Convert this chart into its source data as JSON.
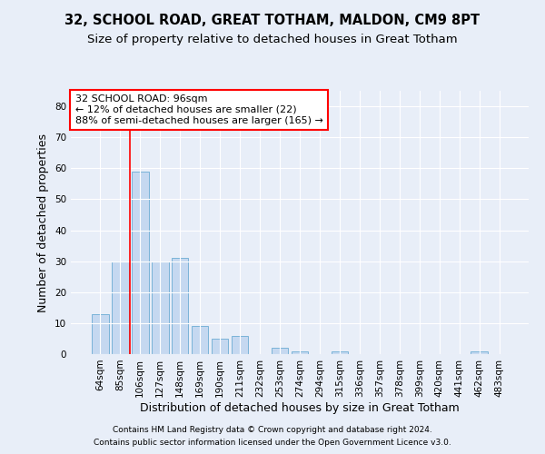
{
  "title1": "32, SCHOOL ROAD, GREAT TOTHAM, MALDON, CM9 8PT",
  "title2": "Size of property relative to detached houses in Great Totham",
  "xlabel": "Distribution of detached houses by size in Great Totham",
  "ylabel": "Number of detached properties",
  "footnote1": "Contains HM Land Registry data © Crown copyright and database right 2024.",
  "footnote2": "Contains public sector information licensed under the Open Government Licence v3.0.",
  "categories": [
    "64sqm",
    "85sqm",
    "106sqm",
    "127sqm",
    "148sqm",
    "169sqm",
    "190sqm",
    "211sqm",
    "232sqm",
    "253sqm",
    "274sqm",
    "294sqm",
    "315sqm",
    "336sqm",
    "357sqm",
    "378sqm",
    "399sqm",
    "420sqm",
    "441sqm",
    "462sqm",
    "483sqm"
  ],
  "values": [
    13,
    30,
    59,
    30,
    31,
    9,
    5,
    6,
    0,
    2,
    1,
    0,
    1,
    0,
    0,
    0,
    0,
    0,
    0,
    1,
    0
  ],
  "bar_color": "#c5d8f0",
  "bar_edge_color": "#7ab3d8",
  "ylim_max": 85,
  "yticks": [
    0,
    10,
    20,
    30,
    40,
    50,
    60,
    70,
    80
  ],
  "redline_x": 1.5,
  "annotation_line1": "32 SCHOOL ROAD: 96sqm",
  "annotation_line2": "← 12% of detached houses are smaller (22)",
  "annotation_line3": "88% of semi-detached houses are larger (165) →",
  "annotation_box_facecolor": "white",
  "annotation_box_edgecolor": "red",
  "redline_color": "red",
  "background_color": "#e8eef8",
  "grid_color": "white",
  "title1_fontsize": 10.5,
  "title2_fontsize": 9.5,
  "xlabel_fontsize": 9,
  "ylabel_fontsize": 9,
  "tick_fontsize": 7.5,
  "annotation_fontsize": 8,
  "footnote_fontsize": 6.5
}
